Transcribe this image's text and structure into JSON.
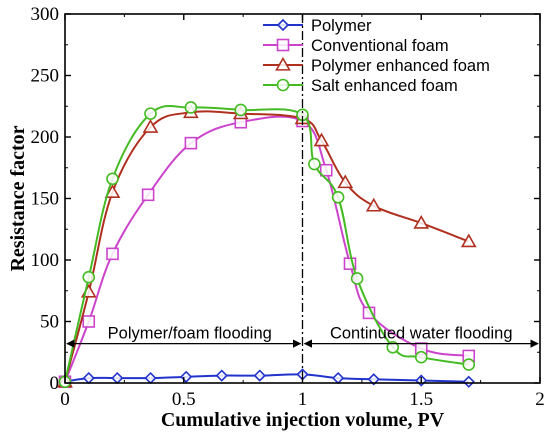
{
  "chart_data": {
    "type": "line",
    "xlabel": "Cumulative injection volume, PV",
    "ylabel": "Resistance factor",
    "xlim": [
      0,
      2
    ],
    "ylim": [
      0,
      300
    ],
    "x_ticks": [
      "0",
      "0.5",
      "1",
      "1.5",
      "2"
    ],
    "y_ticks": [
      "0",
      "50",
      "100",
      "150",
      "200",
      "250",
      "300"
    ],
    "legend_position": "top-right",
    "annotations": {
      "left_region": "Polymer/foam flooding",
      "right_region": "Continued water flooding",
      "divider_x": 1
    },
    "series": [
      {
        "name": "Polymer",
        "color": "#2233cc",
        "marker": "diamond",
        "x": [
          0,
          0.1,
          0.22,
          0.36,
          0.51,
          0.66,
          0.82,
          1.0,
          1.15,
          1.3,
          1.5,
          1.7
        ],
        "y": [
          1,
          4,
          4,
          4,
          5,
          6,
          6,
          7,
          4,
          3,
          2,
          1
        ]
      },
      {
        "name": "Conventional foam",
        "color": "#cc44cc",
        "marker": "square",
        "x": [
          0,
          0.1,
          0.2,
          0.35,
          0.53,
          0.74,
          1.0,
          1.1,
          1.2,
          1.28,
          1.5,
          1.7
        ],
        "y": [
          1,
          50,
          105,
          153,
          195,
          212,
          213,
          173,
          97,
          57,
          28,
          22
        ]
      },
      {
        "name": "Polymer enhanced foam",
        "color": "#b03020",
        "marker": "triangle",
        "x": [
          0,
          0.1,
          0.2,
          0.36,
          0.53,
          0.74,
          1.0,
          1.08,
          1.18,
          1.3,
          1.5,
          1.7
        ],
        "y": [
          1,
          74,
          155,
          208,
          220,
          219,
          215,
          197,
          163,
          144,
          130,
          115
        ]
      },
      {
        "name": "Salt enhanced foam",
        "color": "#44bb22",
        "marker": "circle",
        "x": [
          0,
          0.1,
          0.2,
          0.36,
          0.53,
          0.74,
          1.0,
          1.05,
          1.15,
          1.23,
          1.38,
          1.5,
          1.7
        ],
        "y": [
          1,
          86,
          166,
          219,
          224,
          222,
          218,
          178,
          151,
          85,
          29,
          21,
          15
        ]
      }
    ]
  }
}
